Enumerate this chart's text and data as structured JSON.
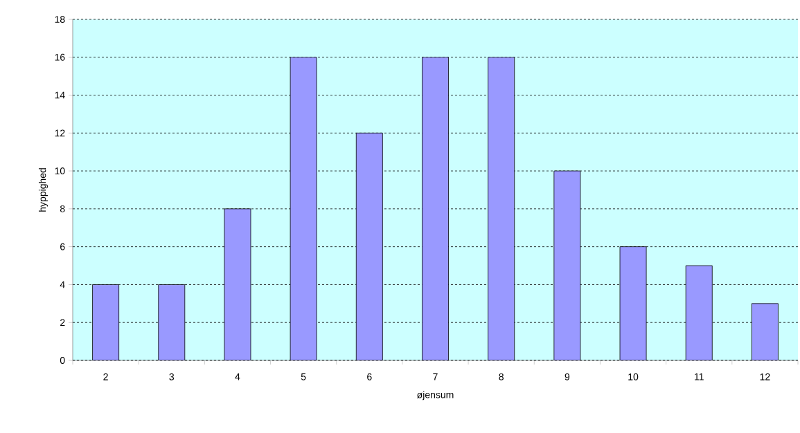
{
  "chart_data": {
    "type": "bar",
    "xlabel": "øjensum",
    "ylabel": "hyppighed",
    "categories": [
      "2",
      "3",
      "4",
      "5",
      "6",
      "7",
      "8",
      "9",
      "10",
      "11",
      "12"
    ],
    "values": [
      4,
      4,
      8,
      16,
      12,
      16,
      16,
      10,
      6,
      5,
      3
    ],
    "color": "#9999ff",
    "ylim": [
      0,
      18
    ],
    "yticks": [
      0,
      2,
      4,
      6,
      8,
      10,
      12,
      14,
      16,
      18
    ],
    "grid": "y"
  }
}
